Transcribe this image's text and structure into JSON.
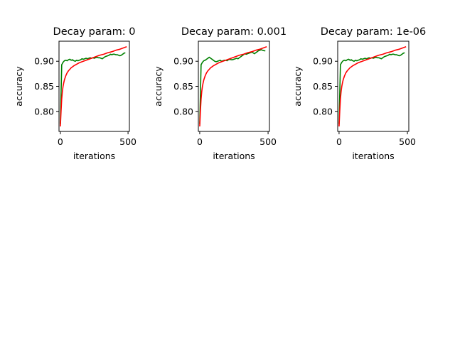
{
  "chart_data": [
    {
      "type": "line",
      "title": "Decay param: 0",
      "xlabel": "iterations",
      "ylabel": "accuracy",
      "xlim": [
        -10,
        510
      ],
      "ylim": [
        0.76,
        0.94
      ],
      "xticks": [
        0,
        500
      ],
      "xtick_labels": [
        "0",
        "500"
      ],
      "yticks": [
        0.8,
        0.85,
        0.9
      ],
      "ytick_labels": [
        "0.80",
        "0.85",
        "0.90"
      ],
      "grid": false,
      "series": [
        {
          "color": "#008000",
          "x": [
            0,
            10,
            20,
            30,
            40,
            50,
            60,
            70,
            80,
            90,
            100,
            110,
            120,
            130,
            140,
            150,
            160,
            170,
            180,
            190,
            200,
            210,
            220,
            230,
            240,
            250,
            260,
            270,
            280,
            290,
            300,
            310,
            320,
            330,
            340,
            350,
            360,
            370,
            380,
            390,
            400,
            410,
            420,
            430,
            440,
            450,
            460,
            470,
            480
          ],
          "y": [
            0.775,
            0.893,
            0.898,
            0.901,
            0.902,
            0.901,
            0.903,
            0.904,
            0.902,
            0.903,
            0.901,
            0.9,
            0.902,
            0.901,
            0.902,
            0.903,
            0.905,
            0.904,
            0.905,
            0.906,
            0.905,
            0.906,
            0.907,
            0.906,
            0.907,
            0.906,
            0.907,
            0.908,
            0.907,
            0.907,
            0.906,
            0.905,
            0.907,
            0.909,
            0.91,
            0.911,
            0.912,
            0.914,
            0.913,
            0.914,
            0.914,
            0.913,
            0.913,
            0.912,
            0.911,
            0.912,
            0.914,
            0.916,
            0.917
          ]
        },
        {
          "color": "#ff0000",
          "x": [
            0,
            5,
            10,
            15,
            20,
            25,
            30,
            40,
            50,
            60,
            70,
            80,
            90,
            100,
            120,
            140,
            160,
            180,
            200,
            230,
            260,
            290,
            320,
            350,
            380,
            410,
            440,
            470,
            490
          ],
          "y": [
            0.77,
            0.8,
            0.825,
            0.84,
            0.85,
            0.857,
            0.863,
            0.871,
            0.877,
            0.881,
            0.884,
            0.887,
            0.889,
            0.891,
            0.894,
            0.897,
            0.899,
            0.901,
            0.903,
            0.906,
            0.909,
            0.912,
            0.914,
            0.917,
            0.919,
            0.922,
            0.924,
            0.927,
            0.929
          ]
        }
      ]
    },
    {
      "type": "line",
      "title": "Decay param: 0.001",
      "xlabel": "iterations",
      "ylabel": "accuracy",
      "xlim": [
        -10,
        510
      ],
      "ylim": [
        0.76,
        0.94
      ],
      "xticks": [
        0,
        500
      ],
      "xtick_labels": [
        "0",
        "500"
      ],
      "yticks": [
        0.8,
        0.85,
        0.9
      ],
      "ytick_labels": [
        "0.80",
        "0.85",
        "0.90"
      ],
      "grid": false,
      "series": [
        {
          "color": "#008000",
          "x": [
            0,
            10,
            20,
            30,
            40,
            50,
            60,
            70,
            80,
            90,
            100,
            110,
            120,
            130,
            140,
            150,
            160,
            170,
            180,
            190,
            200,
            210,
            220,
            230,
            240,
            250,
            260,
            270,
            280,
            290,
            300,
            310,
            320,
            330,
            340,
            350,
            360,
            370,
            380,
            390,
            400,
            410,
            420,
            430,
            440,
            450,
            460,
            470,
            480
          ],
          "y": [
            0.775,
            0.893,
            0.898,
            0.901,
            0.902,
            0.904,
            0.906,
            0.908,
            0.906,
            0.904,
            0.902,
            0.9,
            0.899,
            0.9,
            0.901,
            0.902,
            0.9,
            0.901,
            0.902,
            0.902,
            0.901,
            0.903,
            0.904,
            0.903,
            0.903,
            0.904,
            0.905,
            0.906,
            0.905,
            0.907,
            0.909,
            0.911,
            0.913,
            0.915,
            0.914,
            0.915,
            0.916,
            0.917,
            0.918,
            0.917,
            0.915,
            0.917,
            0.919,
            0.921,
            0.922,
            0.923,
            0.922,
            0.921,
            0.921
          ]
        },
        {
          "color": "#ff0000",
          "x": [
            0,
            5,
            10,
            15,
            20,
            25,
            30,
            40,
            50,
            60,
            70,
            80,
            90,
            100,
            120,
            140,
            160,
            180,
            200,
            230,
            260,
            290,
            320,
            350,
            380,
            410,
            440,
            470,
            490
          ],
          "y": [
            0.77,
            0.8,
            0.825,
            0.84,
            0.85,
            0.857,
            0.863,
            0.871,
            0.877,
            0.881,
            0.884,
            0.887,
            0.889,
            0.891,
            0.894,
            0.897,
            0.899,
            0.901,
            0.903,
            0.906,
            0.909,
            0.912,
            0.914,
            0.917,
            0.919,
            0.922,
            0.924,
            0.927,
            0.929
          ]
        }
      ]
    },
    {
      "type": "line",
      "title": "Decay param: 1e-06",
      "xlabel": "iterations",
      "ylabel": "accuracy",
      "xlim": [
        -10,
        510
      ],
      "ylim": [
        0.76,
        0.94
      ],
      "xticks": [
        0,
        500
      ],
      "xtick_labels": [
        "0",
        "500"
      ],
      "yticks": [
        0.8,
        0.85,
        0.9
      ],
      "ytick_labels": [
        "0.80",
        "0.85",
        "0.90"
      ],
      "grid": false,
      "series": [
        {
          "color": "#008000",
          "x": [
            0,
            10,
            20,
            30,
            40,
            50,
            60,
            70,
            80,
            90,
            100,
            110,
            120,
            130,
            140,
            150,
            160,
            170,
            180,
            190,
            200,
            210,
            220,
            230,
            240,
            250,
            260,
            270,
            280,
            290,
            300,
            310,
            320,
            330,
            340,
            350,
            360,
            370,
            380,
            390,
            400,
            410,
            420,
            430,
            440,
            450,
            460,
            470,
            480
          ],
          "y": [
            0.775,
            0.893,
            0.898,
            0.901,
            0.902,
            0.901,
            0.903,
            0.904,
            0.902,
            0.903,
            0.901,
            0.9,
            0.902,
            0.901,
            0.902,
            0.903,
            0.905,
            0.904,
            0.905,
            0.906,
            0.905,
            0.906,
            0.907,
            0.906,
            0.907,
            0.906,
            0.907,
            0.908,
            0.907,
            0.907,
            0.906,
            0.905,
            0.907,
            0.909,
            0.91,
            0.911,
            0.912,
            0.914,
            0.913,
            0.914,
            0.914,
            0.913,
            0.913,
            0.912,
            0.911,
            0.912,
            0.914,
            0.916,
            0.917
          ]
        },
        {
          "color": "#ff0000",
          "x": [
            0,
            5,
            10,
            15,
            20,
            25,
            30,
            40,
            50,
            60,
            70,
            80,
            90,
            100,
            120,
            140,
            160,
            180,
            200,
            230,
            260,
            290,
            320,
            350,
            380,
            410,
            440,
            470,
            490
          ],
          "y": [
            0.77,
            0.8,
            0.825,
            0.84,
            0.85,
            0.857,
            0.863,
            0.871,
            0.877,
            0.881,
            0.884,
            0.887,
            0.889,
            0.891,
            0.894,
            0.897,
            0.899,
            0.901,
            0.903,
            0.906,
            0.909,
            0.912,
            0.914,
            0.917,
            0.919,
            0.922,
            0.924,
            0.927,
            0.929
          ]
        }
      ]
    }
  ]
}
